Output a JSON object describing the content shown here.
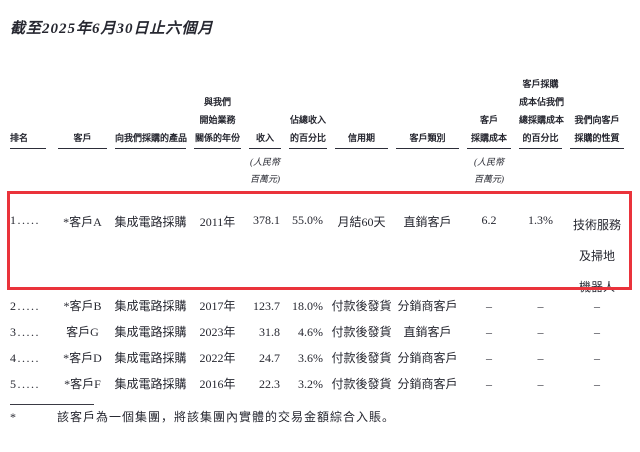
{
  "title": "截至2025年6月30日止六個月",
  "table": {
    "headers": [
      {
        "name": "rank",
        "lines": [
          "排名"
        ],
        "sub": []
      },
      {
        "name": "customer",
        "lines": [
          "客戶"
        ],
        "sub": []
      },
      {
        "name": "product",
        "lines": [
          "向我們採購的產品"
        ],
        "sub": []
      },
      {
        "name": "relationship_year",
        "lines": [
          "與我們",
          "開始業務",
          "關係的年份"
        ],
        "sub": []
      },
      {
        "name": "revenue",
        "lines": [
          "收入"
        ],
        "sub": [
          "(人民幣",
          "百萬元)"
        ]
      },
      {
        "name": "revenue_pct",
        "lines": [
          "佔總收入",
          "的百分比"
        ],
        "sub": []
      },
      {
        "name": "credit_period",
        "lines": [
          "信用期"
        ],
        "sub": []
      },
      {
        "name": "category",
        "lines": [
          "客戶類別"
        ],
        "sub": []
      },
      {
        "name": "cost",
        "lines": [
          "客戶",
          "採購成本"
        ],
        "sub": [
          "(人民幣",
          "百萬元)"
        ]
      },
      {
        "name": "cost_pct",
        "lines": [
          "客戶採購",
          "成本佔我們",
          "總採購成本",
          "的百分比"
        ],
        "sub": []
      },
      {
        "name": "purchase_nature",
        "lines": [
          "我們向客戶",
          "採購的性質"
        ],
        "sub": []
      }
    ],
    "rows": [
      {
        "rank": "1.....",
        "customer": "*客戶A",
        "product": "集成電路採購",
        "year": "2011年",
        "revenue": "378.1",
        "revenue_pct": "55.0%",
        "credit": "月結60天",
        "category": "直銷客戶",
        "cost": "6.2",
        "cost_pct": "1.3%",
        "nature": [
          "技術服務",
          "及掃地",
          "機器人"
        ],
        "highlighted": true
      },
      {
        "rank": "2.....",
        "customer": "*客戶B",
        "product": "集成電路採購",
        "year": "2017年",
        "revenue": "123.7",
        "revenue_pct": "18.0%",
        "credit": "付款後發貨",
        "category": "分銷商客戶",
        "cost": "–",
        "cost_pct": "–",
        "nature": "–",
        "highlighted": false
      },
      {
        "rank": "3.....",
        "customer": "客戶G",
        "product": "集成電路採購",
        "year": "2023年",
        "revenue": "31.8",
        "revenue_pct": "4.6%",
        "credit": "付款後發貨",
        "category": "直銷客戶",
        "cost": "–",
        "cost_pct": "–",
        "nature": "–",
        "highlighted": false
      },
      {
        "rank": "4.....",
        "customer": "*客戶D",
        "product": "集成電路採購",
        "year": "2022年",
        "revenue": "24.7",
        "revenue_pct": "3.6%",
        "credit": "付款後發貨",
        "category": "分銷商客戶",
        "cost": "–",
        "cost_pct": "–",
        "nature": "–",
        "highlighted": false
      },
      {
        "rank": "5.....",
        "customer": "*客戶F",
        "product": "集成電路採購",
        "year": "2016年",
        "revenue": "22.3",
        "revenue_pct": "3.2%",
        "credit": "付款後發貨",
        "category": "分銷商客戶",
        "cost": "–",
        "cost_pct": "–",
        "nature": "–",
        "highlighted": false
      }
    ]
  },
  "footnote": {
    "marker": "*",
    "text": "該客戶為一個集團，將該集團內實體的交易金額綜合入賬。"
  },
  "colors": {
    "highlight_border": "#ea333b",
    "text": "#262730",
    "background": "#ffffff"
  }
}
